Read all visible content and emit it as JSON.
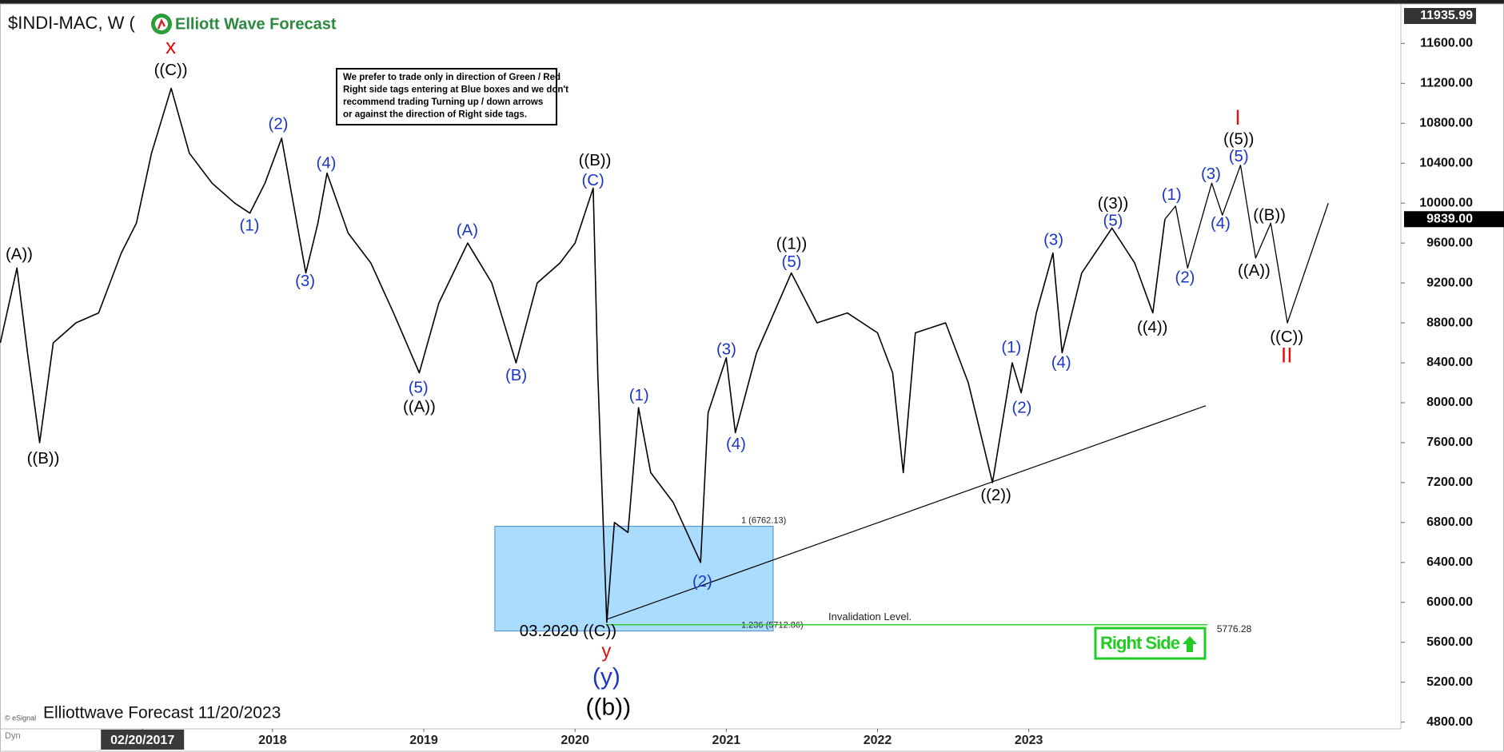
{
  "chart_data": {
    "type": "line",
    "title": "$INDI-MAC, W (",
    "logo": "Elliott Wave Forecast",
    "footer": "Elliottwave Forecast  11/20/2023",
    "source": "© eSignal",
    "mode": "Dyn",
    "color": "#000000",
    "x": [
      2016.2,
      2016.31,
      2016.38,
      2016.46,
      2016.55,
      2016.7,
      2016.85,
      2017.0,
      2017.1,
      2017.2,
      2017.33,
      2017.45,
      2017.6,
      2017.75,
      2017.85,
      2017.95,
      2018.06,
      2018.22,
      2018.3,
      2018.36,
      2018.5,
      2018.65,
      2018.8,
      2018.97,
      2019.1,
      2019.29,
      2019.45,
      2019.61,
      2019.75,
      2019.9,
      2020.0,
      2020.12,
      2020.15,
      2020.21,
      2020.26,
      2020.35,
      2020.42,
      2020.5,
      2020.65,
      2020.83,
      2020.88,
      2021.0,
      2021.06,
      2021.2,
      2021.43,
      2021.6,
      2021.8,
      2022.0,
      2022.1,
      2022.17,
      2022.25,
      2022.45,
      2022.6,
      2022.76,
      2022.89,
      2022.95,
      2023.05,
      2023.16,
      2023.22,
      2023.35,
      2023.55,
      2023.7,
      2023.82,
      2023.9
    ],
    "values": [
      8600,
      9350,
      8500,
      7600,
      8600,
      8800,
      8900,
      9500,
      9800,
      10500,
      11150,
      10500,
      10200,
      10000,
      9900,
      10200,
      10650,
      9300,
      9800,
      10300,
      9700,
      9400,
      8900,
      8300,
      9000,
      9600,
      9200,
      8400,
      9200,
      9400,
      9600,
      10150,
      8300,
      5800,
      6800,
      6700,
      7950,
      7300,
      7000,
      6400,
      7900,
      8450,
      7700,
      8500,
      9300,
      8800,
      8900,
      8700,
      8300,
      7300,
      8700,
      8800,
      8200,
      7200,
      8400,
      8100,
      8900,
      9500,
      8500,
      9300,
      9750,
      9400,
      8900,
      9839
    ],
    "projection": {
      "color": "#000000",
      "x": [
        2023.9,
        2023.97,
        2024.05,
        2024.21,
        2024.28,
        2024.4,
        2024.5,
        2024.6,
        2024.71,
        2024.98
      ],
      "values": [
        9839,
        9970,
        9350,
        10200,
        9880,
        10380,
        9450,
        9800,
        8800,
        10000
      ]
    },
    "trendline": {
      "color": "#000000",
      "x": [
        2020.21,
        2024.17
      ],
      "values": [
        5830,
        7970
      ]
    },
    "blue_box": {
      "color": "#aadcff",
      "x": [
        2019.47,
        2021.31
      ],
      "levels": [
        {
          "value": 6762.13,
          "label": "1 (6762.13)"
        },
        {
          "value": 5712.86,
          "label": "1.236 (5712.86)"
        }
      ]
    },
    "invalidation": {
      "color": "#33cc33",
      "label": "Invalidation Level.",
      "value": 5776.28,
      "value_label": "5776.28",
      "x": [
        2020.21,
        2024.18
      ]
    },
    "last_price": {
      "value": 9839,
      "label": "9839.00"
    },
    "high_price": {
      "value": 11935.99,
      "label": "11935.99"
    },
    "right_side_tag": {
      "label": "Right Side",
      "color": "#22cc22"
    },
    "notice": [
      "We prefer to trade only in direction of Green / Red",
      "Right side tags entering at Blue boxes and we don't",
      "recommend trading Turning up / down arrows",
      "or against the direction of Right side tags."
    ],
    "label_colors": {
      "blue": "#1a35c8",
      "red": "#e01010",
      "black": "#000000"
    },
    "wave_labels": [
      "(A))",
      "((B))",
      "x",
      "((C))",
      "(2)",
      "(1)",
      "(4)",
      "(3)",
      "(5)",
      "((A))",
      "(A)",
      "(B)",
      "((B))",
      "(C)",
      "(1)",
      "(2)",
      "(3)",
      "(4)",
      "((1))",
      "(5)",
      "((2))",
      "(1)",
      "(2)",
      "(3)",
      "(4)",
      "((3))",
      "(5)",
      "((4))",
      "(1)",
      "(2)",
      "(3)",
      "(4)",
      "I",
      "((5))",
      "(5)",
      "((B))",
      "((A))",
      "((C))",
      "II",
      "03.2020 ((C))",
      "y",
      "(y)",
      "((b))"
    ],
    "xlim": [
      2016.198,
      2025.46
    ],
    "ylim": [
      4733,
      11955
    ],
    "xticks": [
      {
        "value": 2017.14,
        "label": "02/20/2017"
      },
      2018,
      2019,
      2020,
      2021,
      2022,
      2023
    ],
    "yticks": [
      {
        "value": 4800,
        "label": "4800.00"
      },
      {
        "value": 5200,
        "label": "5200.00"
      },
      {
        "value": 5600,
        "label": "5600.00"
      },
      {
        "value": 6000,
        "label": "6000.00"
      },
      {
        "value": 6400,
        "label": "6400.00"
      },
      {
        "value": 6800,
        "label": "6800.00"
      },
      {
        "value": 7200,
        "label": "7200.00"
      },
      {
        "value": 7600,
        "label": "7600.00"
      },
      {
        "value": 8000,
        "label": "8000.00"
      },
      {
        "value": 8400,
        "label": "8400.00"
      },
      {
        "value": 8800,
        "label": "8800.00"
      },
      {
        "value": 9200,
        "label": "9200.00"
      },
      {
        "value": 9600,
        "label": "9600.00"
      },
      {
        "value": 10000,
        "label": "10000.00"
      },
      {
        "value": 10400,
        "label": "10400.00"
      },
      {
        "value": 10800,
        "label": "10800.00"
      },
      {
        "value": 11200,
        "label": "11200.00"
      },
      {
        "value": 11600,
        "label": "11600.00"
      }
    ],
    "grid": false
  }
}
